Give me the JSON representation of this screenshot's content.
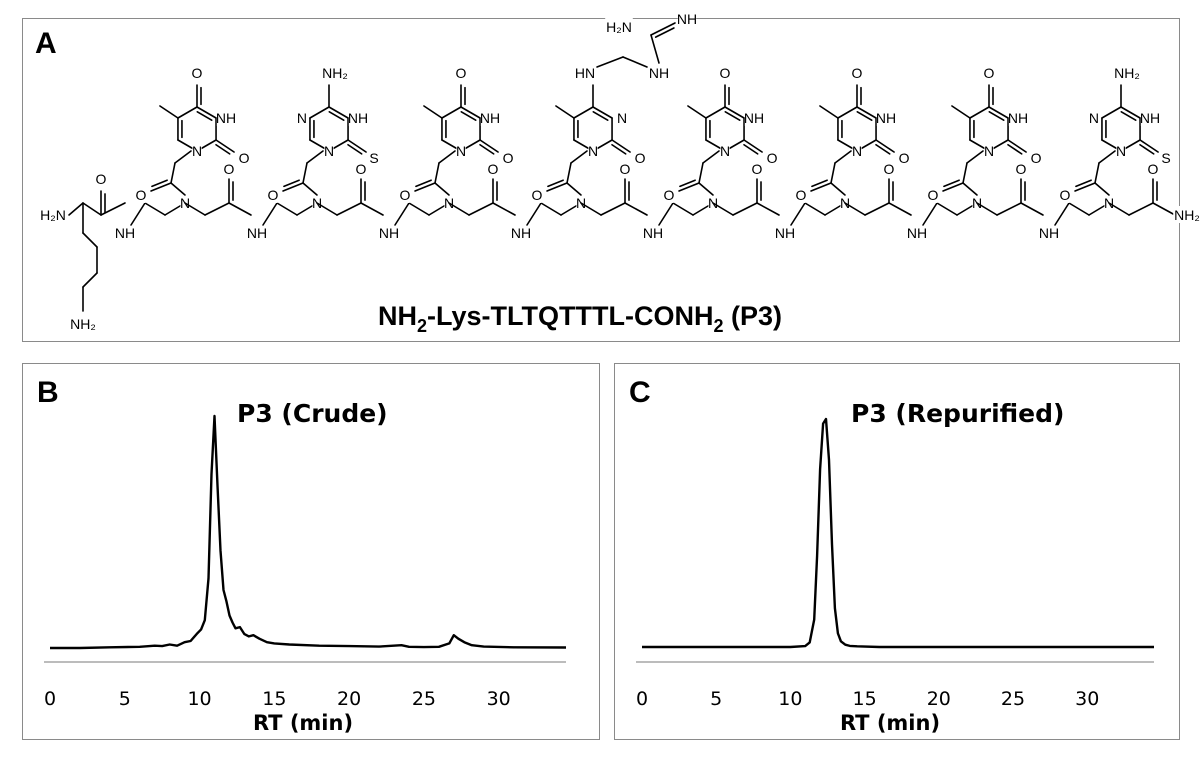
{
  "panel_a": {
    "label": "A",
    "caption_parts": [
      "NH",
      "2",
      "-Lys-TLTQTTTL-CONH",
      "2",
      " (P3)"
    ],
    "atom_labels": {
      "h2n": "H₂N",
      "nh2": "NH₂",
      "n": "N",
      "nh": "NH",
      "o": "O",
      "s": "S",
      "hn": "HN"
    }
  },
  "chart_data": [
    {
      "panel_label": "B",
      "type": "line",
      "title": "P3 (Crude)",
      "xlabel": "RT (min)",
      "ylabel": "",
      "xlim": [
        0,
        34.5
      ],
      "ylim": [
        0,
        1
      ],
      "xticks": [
        0,
        5,
        10,
        15,
        20,
        25,
        30
      ],
      "grid": false,
      "series": [
        {
          "x": [
            0,
            2,
            4,
            6,
            7,
            7.5,
            8,
            8.5,
            9,
            9.4,
            9.8,
            10.1,
            10.35,
            10.6,
            10.8,
            11.0,
            11.2,
            11.4,
            11.6,
            11.8,
            12.0,
            12.2,
            12.4,
            12.7,
            13.0,
            13.3,
            13.6,
            14.0,
            14.5,
            15.0,
            16,
            18,
            20,
            22,
            23.5,
            24,
            25,
            26,
            26.7,
            27.0,
            27.3,
            27.7,
            28.2,
            29,
            31,
            34.5
          ],
          "y": [
            0.0,
            0.0,
            0.003,
            0.005,
            0.01,
            0.008,
            0.015,
            0.01,
            0.025,
            0.03,
            0.06,
            0.08,
            0.12,
            0.3,
            0.75,
            1.0,
            0.7,
            0.42,
            0.25,
            0.2,
            0.14,
            0.11,
            0.085,
            0.09,
            0.06,
            0.05,
            0.055,
            0.04,
            0.025,
            0.02,
            0.015,
            0.01,
            0.008,
            0.006,
            0.012,
            0.005,
            0.004,
            0.005,
            0.02,
            0.055,
            0.04,
            0.025,
            0.012,
            0.006,
            0.003,
            0.002
          ]
        }
      ]
    },
    {
      "panel_label": "C",
      "type": "line",
      "title": "P3 (Repurified)",
      "xlabel": "RT (min)",
      "ylabel": "",
      "xlim": [
        0,
        34.5
      ],
      "ylim": [
        0,
        1
      ],
      "xticks": [
        0,
        5,
        10,
        15,
        20,
        25,
        30
      ],
      "grid": false,
      "series": [
        {
          "x": [
            0,
            5,
            10,
            11.0,
            11.3,
            11.6,
            11.8,
            12.0,
            12.2,
            12.4,
            12.6,
            12.8,
            13.0,
            13.2,
            13.4,
            13.7,
            14.0,
            14.5,
            16,
            20,
            25,
            30,
            34.5
          ],
          "y": [
            0.0,
            0.0,
            0.0,
            0.004,
            0.02,
            0.12,
            0.4,
            0.78,
            0.98,
            1.0,
            0.82,
            0.45,
            0.17,
            0.06,
            0.025,
            0.01,
            0.005,
            0.003,
            0.0,
            0.0,
            0.0,
            0.0,
            0.0
          ]
        }
      ]
    }
  ]
}
